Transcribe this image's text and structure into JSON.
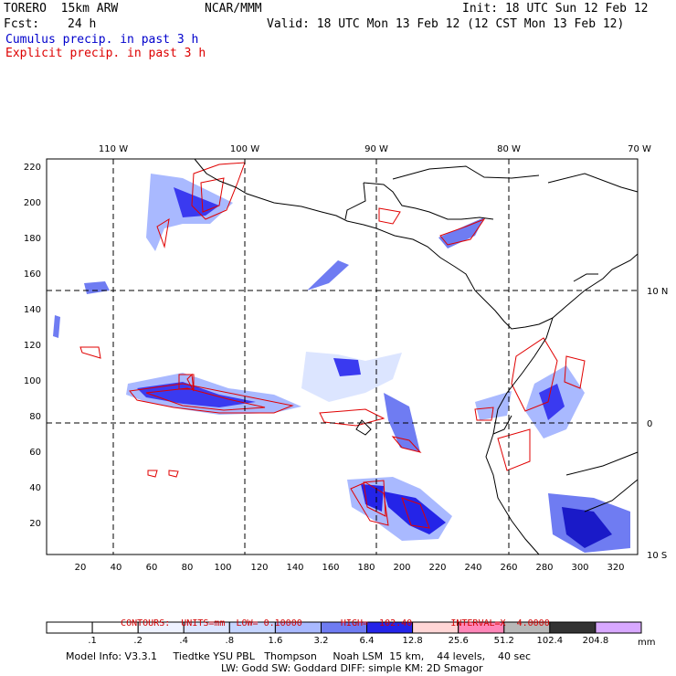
{
  "header": {
    "model": "TORERO  15km ARW",
    "org": "NCAR/MMM",
    "init": "Init: 18 UTC Sun 12 Feb 12",
    "fcst_label": "Fcst:",
    "fcst_value": "24 h",
    "valid": "Valid: 18 UTC Mon 13 Feb 12 (12 CST Mon 13 Feb 12)",
    "field_cumulus": "Cumulus precip. in past 3 h",
    "field_explicit": "Explicit precip. in past 3 h"
  },
  "colors": {
    "cumulus_text": "#0000cc",
    "explicit_text": "#dd0000",
    "contour": "#e00000",
    "coast": "#000000"
  },
  "map": {
    "lon_labels": [
      "110 W",
      "100 W",
      "90 W",
      "80 W",
      "70 W"
    ],
    "lat_labels": [
      "10 N",
      "0",
      "10 S"
    ],
    "x_ticks": [
      "20",
      "40",
      "60",
      "80",
      "100",
      "120",
      "140",
      "160",
      "180",
      "200",
      "220",
      "240",
      "260",
      "280",
      "300",
      "320"
    ],
    "y_ticks": [
      "20",
      "40",
      "60",
      "80",
      "100",
      "120",
      "140",
      "160",
      "180",
      "200",
      "220"
    ]
  },
  "contours": {
    "label": "CONTOURS:",
    "units": "UNITS=mm",
    "low": "LOW= 0.10000",
    "high": "HIGH=  102.40",
    "interval": "INTERVAL=X  4.0000"
  },
  "colorbar": {
    "labels": [
      ".1",
      ".2",
      ".4",
      ".8",
      "1.6",
      "3.2",
      "6.4",
      "12.8",
      "25.6",
      "51.2",
      "102.4",
      "204.8"
    ],
    "unit": "mm",
    "colors": [
      "#ffffff",
      "#ffffff",
      "#eef2ff",
      "#dce5ff",
      "#c5d5ff",
      "#a9b9ff",
      "#6f7cf2",
      "#2424e8",
      "#ffd6d6",
      "#ff86b8",
      "#b8b8b8",
      "#333333",
      "#d8a8ff"
    ]
  },
  "footer": {
    "line1": "Model Info: V3.3.1     Tiedtke YSU PBL   Thompson     Noah LSM  15 km,    44 levels,    40 sec",
    "line2": "LW: Godd SW: Goddard DIFF: simple KM: 2D Smagor"
  }
}
